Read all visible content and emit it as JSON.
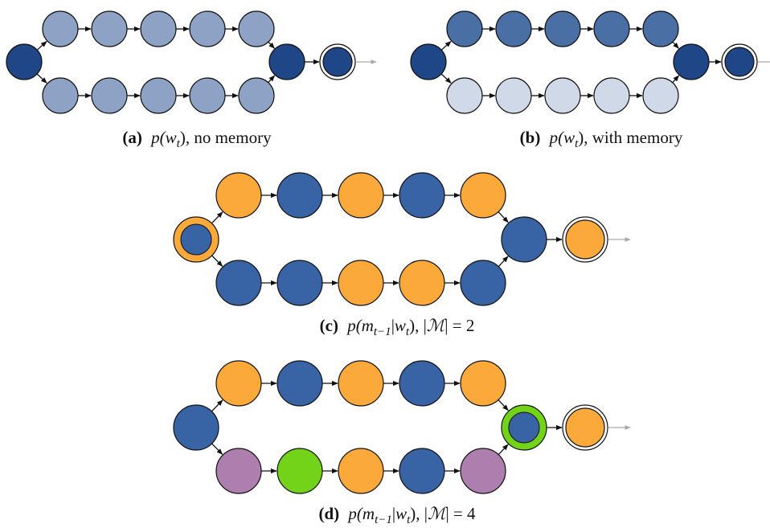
{
  "colors": {
    "dark_blue": "#1f4788",
    "medium_blue": "#4a6fa5",
    "light_blue_a": "#8da2c4",
    "light_blue_b": "#d0d9e7",
    "blue": "#3864a6",
    "orange": "#fba93a",
    "purple": "#ae7fae",
    "green": "#72d318",
    "arrow": "#111111",
    "arrow_out": "#aaaaaa"
  },
  "panels": [
    {
      "id": "a",
      "caption": {
        "label": "(a)",
        "text": "p(w_t), no memory",
        "parts": [
          "p(",
          "w",
          "t",
          "), no memory"
        ]
      },
      "start": {
        "fill": "dark_blue"
      },
      "top": [
        "light_blue_a",
        "light_blue_a",
        "light_blue_a",
        "light_blue_a",
        "light_blue_a"
      ],
      "bottom": [
        "light_blue_a",
        "light_blue_a",
        "light_blue_a",
        "light_blue_a",
        "light_blue_a"
      ],
      "join": {
        "fill": "dark_blue"
      },
      "final": {
        "fill": "dark_blue"
      }
    },
    {
      "id": "b",
      "caption": {
        "label": "(b)",
        "text": "p(w_t), with memory",
        "parts": [
          "p(",
          "w",
          "t",
          "), with memory"
        ]
      },
      "start": {
        "fill": "dark_blue"
      },
      "top": [
        "medium_blue",
        "medium_blue",
        "medium_blue",
        "medium_blue",
        "medium_blue"
      ],
      "bottom": [
        "light_blue_b",
        "light_blue_b",
        "light_blue_b",
        "light_blue_b",
        "light_blue_b"
      ],
      "join": {
        "fill": "dark_blue"
      },
      "final": {
        "fill": "dark_blue"
      }
    },
    {
      "id": "c",
      "caption": {
        "label": "(c)",
        "text": "p(m_{t−1}|w_t), |M| = 2",
        "parts": [
          "p(",
          "m",
          "t−1",
          "|",
          "w",
          "t",
          "), |",
          "ℳ",
          "| = 2"
        ]
      },
      "start": {
        "fill": "blue",
        "ring": "orange"
      },
      "top": [
        "orange",
        "blue",
        "orange",
        "blue",
        "orange"
      ],
      "bottom": [
        "blue",
        "blue",
        "orange",
        "orange",
        "blue"
      ],
      "join": {
        "fill": "blue"
      },
      "final": {
        "fill": "orange"
      }
    },
    {
      "id": "d",
      "caption": {
        "label": "(d)",
        "text": "p(m_{t−1}|w_t), |M| = 4",
        "parts": [
          "p(",
          "m",
          "t−1",
          "|",
          "w",
          "t",
          "), |",
          "ℳ",
          "| = 4"
        ]
      },
      "start": {
        "fill": "blue"
      },
      "top": [
        "orange",
        "blue",
        "orange",
        "blue",
        "orange"
      ],
      "bottom": [
        "purple",
        "green",
        "orange",
        "blue",
        "purple"
      ],
      "join": {
        "fill": "blue",
        "ring": "green"
      },
      "final": {
        "fill": "orange"
      }
    }
  ]
}
